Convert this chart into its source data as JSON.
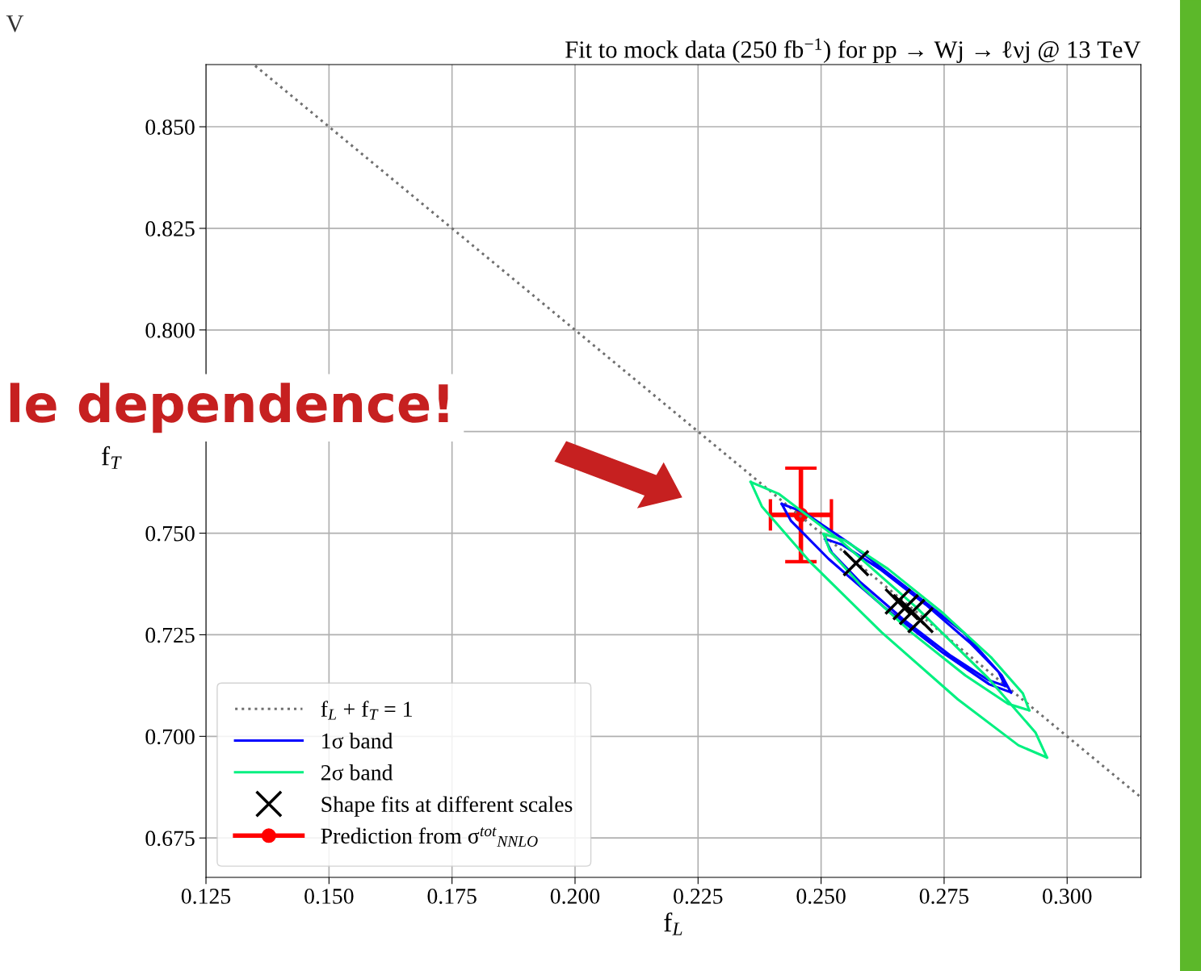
{
  "chart_data": {
    "type": "scatter",
    "title": "Fit to mock data (250 fb$^{−1}$) for pp → Wj → ℓνj @ 13 TeV",
    "xlabel": "f$_{L}$",
    "ylabel": "f$_{T}$",
    "xlim": [
      0.125,
      0.315
    ],
    "ylim": [
      0.6653,
      0.8653
    ],
    "xticks": [
      {
        "value": 0.125,
        "label": "0.125"
      },
      {
        "value": 0.15,
        "label": "0.150"
      },
      {
        "value": 0.175,
        "label": "0.175"
      },
      {
        "value": 0.2,
        "label": "0.200"
      },
      {
        "value": 0.225,
        "label": "0.225"
      },
      {
        "value": 0.25,
        "label": "0.250"
      },
      {
        "value": 0.275,
        "label": "0.275"
      },
      {
        "value": 0.3,
        "label": "0.300"
      }
    ],
    "yticks": [
      {
        "value": 0.675,
        "label": "0.675"
      },
      {
        "value": 0.7,
        "label": "0.700"
      },
      {
        "value": 0.725,
        "label": "0.725"
      },
      {
        "value": 0.75,
        "label": "0.750"
      },
      {
        "value": 0.775,
        "label": null
      },
      {
        "value": 0.8,
        "label": "0.800"
      },
      {
        "value": 0.825,
        "label": "0.825"
      },
      {
        "value": 0.85,
        "label": "0.850"
      }
    ],
    "grid": true,
    "legend": "bottom left",
    "annotations": [
      "V",
      "le dependence!"
    ],
    "series": [
      {
        "name": "f$_{L}$ + f$_{T}$ = 1",
        "type": "line",
        "line_style": "dotted",
        "marker": "none",
        "color": "#707070",
        "x": [
          0.135,
          0.315
        ],
        "values": [
          0.865,
          0.685
        ]
      },
      {
        "name": "1σ band",
        "type": "line",
        "line_style": "solid",
        "marker": "none",
        "color": "#0000ff",
        "x": [
          0.242,
          0.2464,
          0.2558,
          0.2678,
          0.2791,
          0.2867,
          0.2886,
          null,
          0.242,
          0.2439,
          0.2515,
          0.2628,
          0.2748,
          0.2842,
          0.2886,
          null,
          0.2508,
          0.2544,
          0.2619,
          0.2713,
          0.2802,
          0.2861,
          0.2874,
          null,
          0.2508,
          0.2522,
          0.258,
          0.2669,
          0.2764,
          0.2839,
          0.2874
        ],
        "values": [
          0.7572,
          0.7552,
          0.7475,
          0.7362,
          0.7254,
          0.715,
          0.7108,
          null,
          0.7572,
          0.753,
          0.7437,
          0.7318,
          0.7205,
          0.7128,
          0.7108,
          null,
          0.7486,
          0.7471,
          0.7412,
          0.7324,
          0.7231,
          0.7158,
          0.7124,
          null,
          0.7486,
          0.7452,
          0.7379,
          0.7286,
          0.7198,
          0.7139,
          0.7124
        ]
      },
      {
        "name": "2σ band",
        "type": "line",
        "line_style": "solid",
        "marker": "none",
        "color": "#00f080",
        "x": [
          0.2357,
          0.2415,
          0.2538,
          0.2693,
          0.2839,
          0.2936,
          0.2959,
          null,
          0.2357,
          0.238,
          0.2477,
          0.2623,
          0.2778,
          0.2901,
          0.2959,
          null,
          0.2505,
          0.2548,
          0.2636,
          0.2744,
          0.2845,
          0.291,
          0.2923,
          null,
          0.2505,
          0.2518,
          0.2584,
          0.2684,
          0.2793,
          0.288,
          0.2923
        ],
        "values": [
          0.7626,
          0.7596,
          0.7483,
          0.7318,
          0.7144,
          0.7009,
          0.6948,
          null,
          0.7626,
          0.7565,
          0.743,
          0.7256,
          0.7091,
          0.6978,
          0.6948,
          null,
          0.7498,
          0.7482,
          0.7412,
          0.7307,
          0.7195,
          0.7106,
          0.7064,
          null,
          0.7498,
          0.7456,
          0.7367,
          0.7255,
          0.715,
          0.708,
          0.7064
        ]
      },
      {
        "name": "Shape fits at different scales",
        "marker": "cross",
        "color": "#000000",
        "x": [
          0.2571,
          0.2656,
          0.2672,
          0.2685,
          0.2702
        ],
        "values": [
          0.7426,
          0.7332,
          0.7318,
          0.7306,
          0.7286
        ]
      },
      {
        "name": "Prediction from σ$^{tot}$$_{NNLO}$",
        "marker": "circle",
        "color": "#ff0000",
        "x": [
          0.2459
        ],
        "values": [
          0.7545
        ],
        "errors": [
          0.0115
        ],
        "xerrors": [
          0.0062
        ]
      }
    ]
  }
}
